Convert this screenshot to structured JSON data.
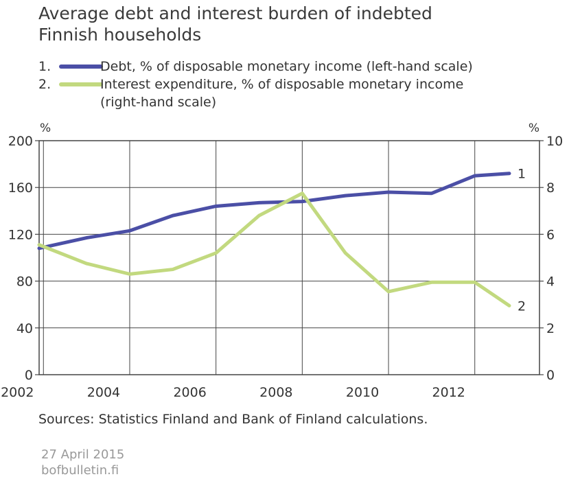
{
  "title_lines": [
    "Average debt and interest burden of indebted",
    "Finnish households"
  ],
  "legend": [
    {
      "num": "1.",
      "label": "Debt, % of disposable monetary income (left-hand scale)",
      "color": "#4b4fa6"
    },
    {
      "num": "2.",
      "label": "Interest expenditure, % of disposable monetary income",
      "color": "#c2d97f"
    }
  ],
  "legend_cont": "(right-hand scale)",
  "chart_data": {
    "type": "line",
    "x": [
      2001.9,
      2003,
      2004,
      2005,
      2006,
      2007,
      2008,
      2009,
      2010,
      2011,
      2012,
      2012.8
    ],
    "series": [
      {
        "name": "Debt, % of disposable monetary income (left-hand scale)",
        "axis": "left",
        "color": "#4b4fa6",
        "end_label": "1",
        "values": [
          108,
          117,
          123,
          136,
          144,
          147,
          148,
          153,
          156,
          155,
          170,
          172
        ]
      },
      {
        "name": "Interest expenditure, % of disposable monetary income (right-hand scale)",
        "axis": "right",
        "color": "#c2d97f",
        "end_label": "2",
        "values": [
          5.55,
          4.75,
          4.3,
          4.5,
          5.2,
          6.8,
          7.75,
          5.2,
          3.55,
          3.95,
          3.95,
          2.95
        ]
      }
    ],
    "xlim": [
      2001.9,
      2013.5
    ],
    "xticks": [
      2002,
      2004,
      2006,
      2008,
      2010,
      2012
    ],
    "y_left": {
      "range": [
        0,
        200
      ],
      "ticks": [
        0,
        40,
        80,
        120,
        160,
        200
      ],
      "unit": "%"
    },
    "y_right": {
      "range": [
        0,
        10
      ],
      "ticks": [
        0,
        2,
        4,
        6,
        8,
        10
      ],
      "unit": "%"
    },
    "grid": true
  },
  "sources": "Sources: Statistics Finland and Bank of Finland calculations.",
  "date": "27 April 2015",
  "site": "bofbulletin.fi"
}
